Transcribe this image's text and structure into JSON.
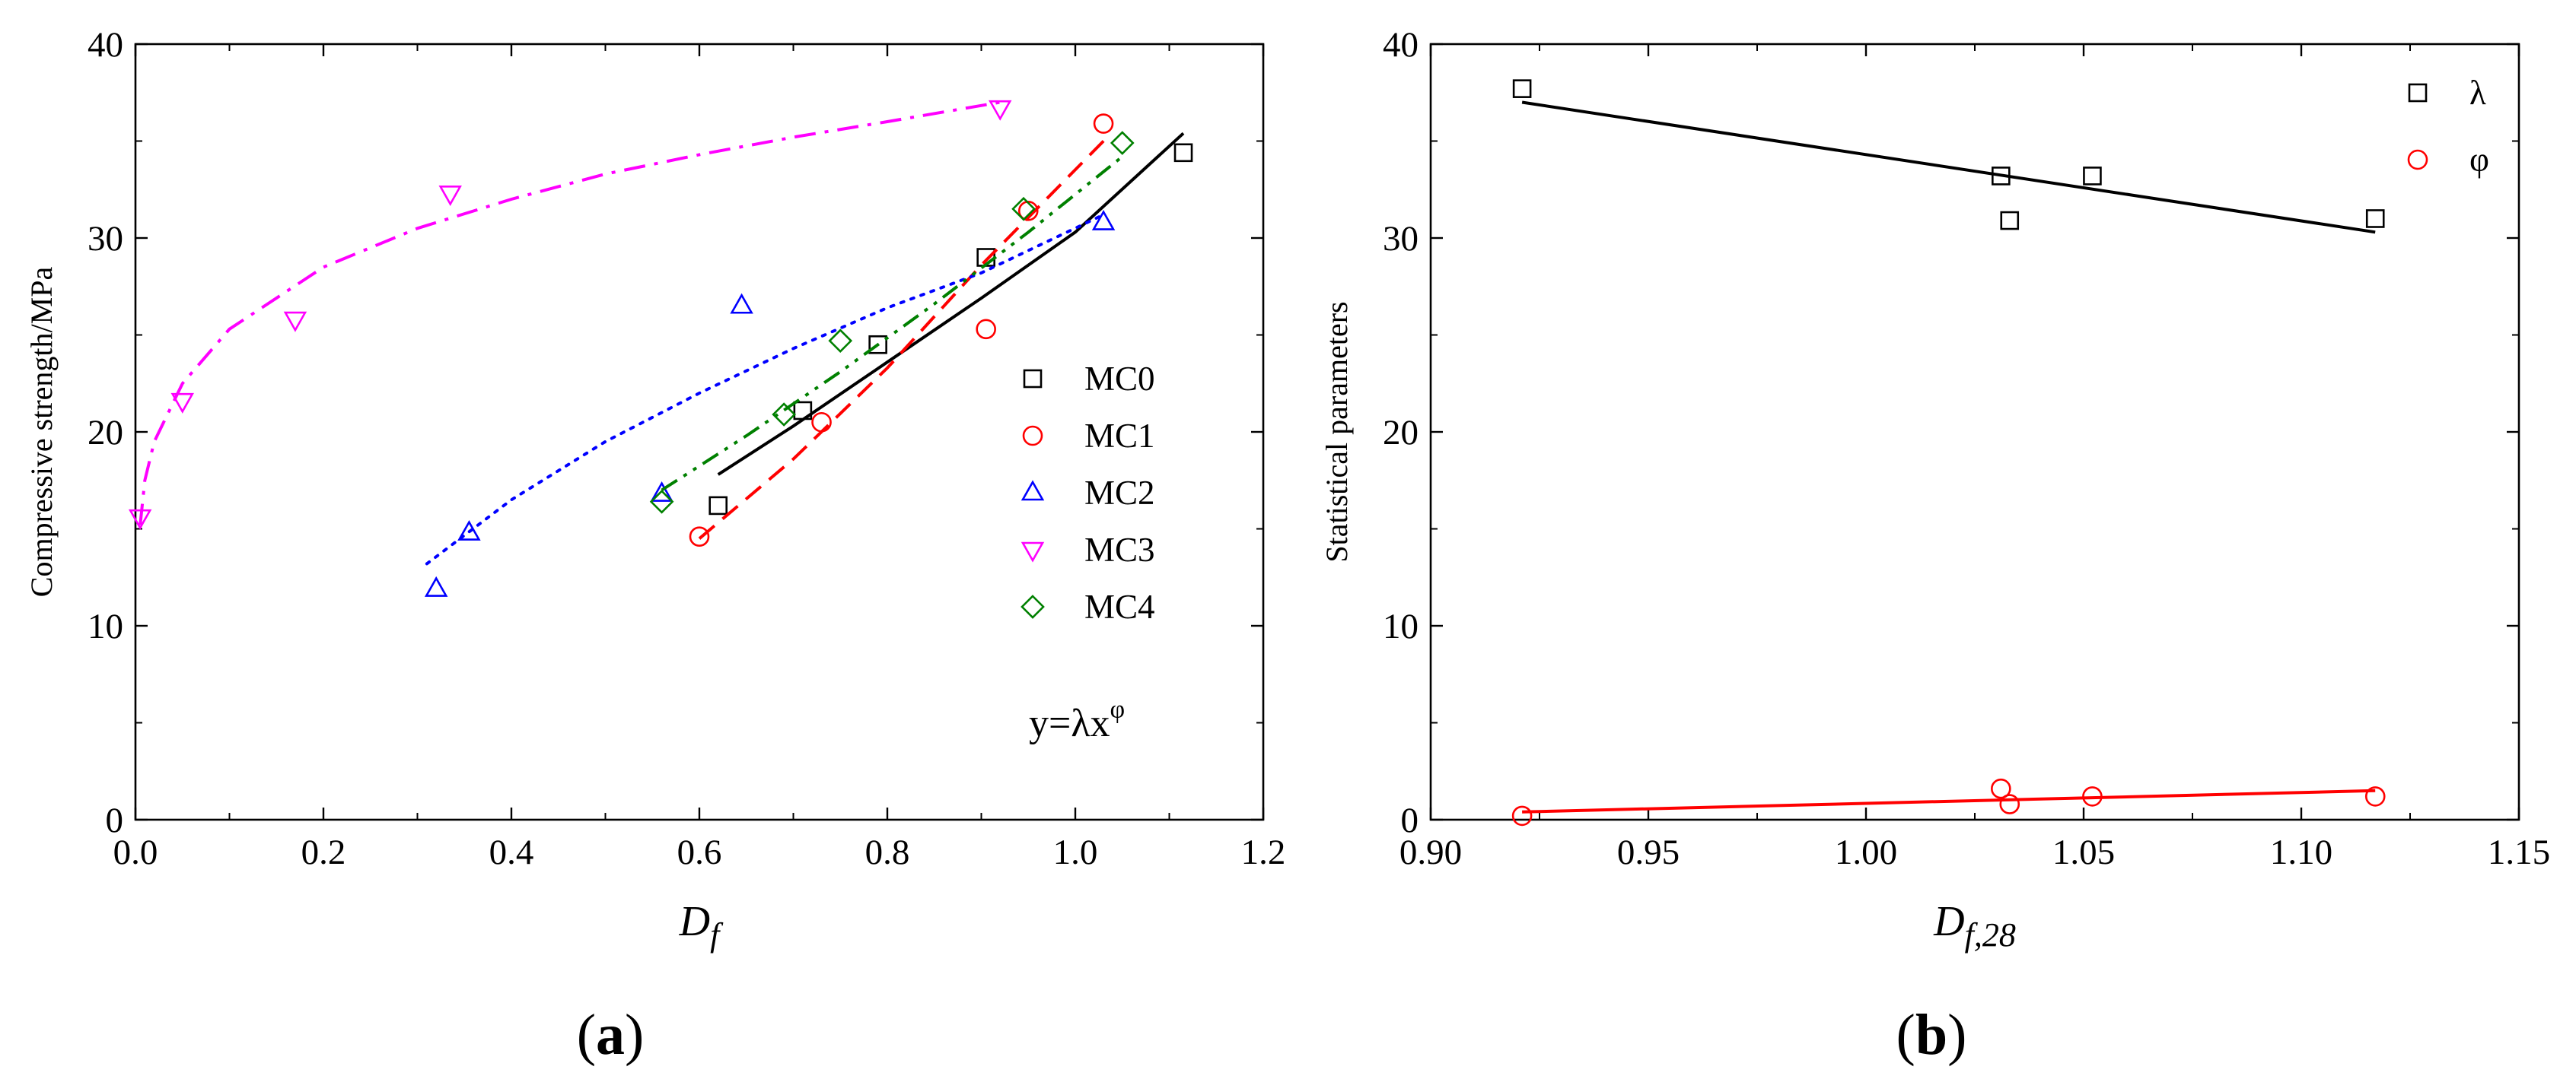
{
  "panels": {
    "a": {
      "label_text": "a"
    },
    "b": {
      "label_text": "b"
    }
  },
  "chart_data": [
    {
      "panel": "a",
      "type": "scatter",
      "title": "",
      "xlabel": "D",
      "xlabel_sub": "f",
      "ylabel": "Compressive strength/MPa",
      "xlim": [
        0.0,
        1.2
      ],
      "ylim": [
        0,
        40
      ],
      "xticks": [
        "0.0",
        "0.2",
        "0.4",
        "0.6",
        "0.8",
        "1.0",
        "1.2"
      ],
      "yticks": [
        "0",
        "10",
        "20",
        "30",
        "40"
      ],
      "grid": false,
      "legend_position": "right-middle",
      "annotation": {
        "prefix": "y=λx",
        "sup": "φ"
      },
      "series": [
        {
          "name": "MC0",
          "marker": "square",
          "color": "#000000",
          "line_style": "solid",
          "points": [
            [
              0.62,
              16.2
            ],
            [
              0.71,
              21.1
            ],
            [
              0.79,
              24.5
            ],
            [
              0.905,
              29.0
            ],
            [
              1.115,
              34.4
            ]
          ],
          "fit": [
            [
              0.62,
              17.8
            ],
            [
              0.7,
              20.3
            ],
            [
              0.8,
              23.6
            ],
            [
              0.9,
              26.9
            ],
            [
              1.0,
              30.3
            ],
            [
              1.115,
              35.4
            ]
          ]
        },
        {
          "name": "MC1",
          "marker": "circle",
          "color": "#ff0000",
          "line_style": "dashed",
          "points": [
            [
              0.6,
              14.6
            ],
            [
              0.73,
              20.5
            ],
            [
              0.905,
              25.3
            ],
            [
              0.95,
              31.4
            ],
            [
              1.03,
              35.9
            ]
          ],
          "fit": [
            [
              0.6,
              14.5
            ],
            [
              0.7,
              18.6
            ],
            [
              0.8,
              23.3
            ],
            [
              0.9,
              28.6
            ],
            [
              1.03,
              35.0
            ]
          ]
        },
        {
          "name": "MC2",
          "marker": "triangle-up",
          "color": "#0000ff",
          "line_style": "dotted",
          "points": [
            [
              0.32,
              11.9
            ],
            [
              0.355,
              14.8
            ],
            [
              0.56,
              16.8
            ],
            [
              0.645,
              26.5
            ],
            [
              1.03,
              30.8
            ]
          ],
          "fit": [
            [
              0.31,
              13.2
            ],
            [
              0.4,
              16.5
            ],
            [
              0.5,
              19.5
            ],
            [
              0.6,
              22.0
            ],
            [
              0.7,
              24.3
            ],
            [
              0.8,
              26.4
            ],
            [
              0.9,
              28.2
            ],
            [
              1.03,
              31.2
            ]
          ]
        },
        {
          "name": "MC3",
          "marker": "triangle-down",
          "color": "#ff00ff",
          "line_style": "dash-dot",
          "points": [
            [
              0.005,
              15.6
            ],
            [
              0.05,
              21.6
            ],
            [
              0.17,
              25.8
            ],
            [
              0.335,
              32.3
            ],
            [
              0.92,
              36.7
            ]
          ],
          "fit": [
            [
              0.005,
              15.2
            ],
            [
              0.01,
              17.5
            ],
            [
              0.02,
              19.5
            ],
            [
              0.05,
              22.5
            ],
            [
              0.1,
              25.3
            ],
            [
              0.2,
              28.5
            ],
            [
              0.3,
              30.5
            ],
            [
              0.4,
              32.0
            ],
            [
              0.5,
              33.3
            ],
            [
              0.6,
              34.3
            ],
            [
              0.7,
              35.2
            ],
            [
              0.8,
              36.0
            ],
            [
              0.92,
              37.0
            ]
          ]
        },
        {
          "name": "MC4",
          "marker": "diamond",
          "color": "#008000",
          "line_style": "dash-dot-dot",
          "points": [
            [
              0.56,
              16.4
            ],
            [
              0.69,
              20.9
            ],
            [
              0.75,
              24.7
            ],
            [
              0.945,
              31.5
            ],
            [
              1.05,
              34.9
            ]
          ],
          "fit": [
            [
              0.56,
              17.0
            ],
            [
              0.65,
              19.8
            ],
            [
              0.75,
              23.1
            ],
            [
              0.85,
              26.6
            ],
            [
              0.95,
              30.3
            ],
            [
              1.05,
              34.2
            ]
          ]
        }
      ]
    },
    {
      "panel": "b",
      "type": "scatter",
      "title": "",
      "xlabel": "D",
      "xlabel_sub": "f,28",
      "ylabel": "Statistical parameters",
      "xlim": [
        0.9,
        1.15
      ],
      "ylim": [
        0,
        40
      ],
      "xticks": [
        "0.90",
        "0.95",
        "1.00",
        "1.05",
        "1.10",
        "1.15"
      ],
      "yticks": [
        "0",
        "10",
        "20",
        "30",
        "40"
      ],
      "grid": false,
      "legend_position": "top-right",
      "series": [
        {
          "name": "λ",
          "marker": "square",
          "color": "#000000",
          "line_style": "solid",
          "points": [
            [
              0.921,
              37.7
            ],
            [
              1.031,
              33.2
            ],
            [
              1.033,
              30.9
            ],
            [
              1.052,
              33.2
            ],
            [
              1.117,
              31.0
            ]
          ],
          "fit": [
            [
              0.921,
              37.0
            ],
            [
              1.117,
              30.3
            ]
          ]
        },
        {
          "name": "φ",
          "marker": "circle",
          "color": "#ff0000",
          "line_style": "solid",
          "points": [
            [
              0.921,
              0.2
            ],
            [
              1.031,
              1.6
            ],
            [
              1.033,
              0.8
            ],
            [
              1.052,
              1.2
            ],
            [
              1.117,
              1.2
            ]
          ],
          "fit": [
            [
              0.921,
              0.4
            ],
            [
              1.117,
              1.5
            ]
          ]
        }
      ]
    }
  ]
}
